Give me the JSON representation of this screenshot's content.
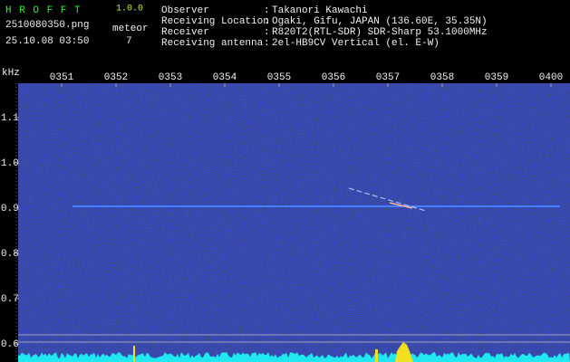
{
  "header": {
    "app": "H R O F F T",
    "version": "1.0.0",
    "filename": "2510080350.png",
    "datetime": "25.10.08 03:50",
    "meteor_label": "meteor",
    "meteor_count": 7,
    "info": [
      {
        "label": "Observer",
        "value": "Takanori Kawachi"
      },
      {
        "label": "Receiving Location",
        "value": "Ogaki, Gifu, JAPAN (136.60E, 35.35N)"
      },
      {
        "label": "Receiver",
        "value": "R820T2(RTL-SDR) SDR-Sharp 53.1000MHz"
      },
      {
        "label": "Receiving antenna",
        "value": "2el-HB9CV Vertical (el. E-W)"
      }
    ]
  },
  "chart_data": {
    "type": "spectrogram",
    "y_label": "kHz",
    "categories": [
      "0351",
      "0352",
      "0353",
      "0354",
      "0355",
      "0356",
      "0357",
      "0358",
      "0359",
      "0400"
    ],
    "ylim": [
      0.56,
      1.19
    ],
    "yticks": [
      1.1,
      {
        "value": 1.0,
        "label": "1.0"
      },
      0.9,
      0.8,
      0.7,
      0.6
    ]
  }
}
